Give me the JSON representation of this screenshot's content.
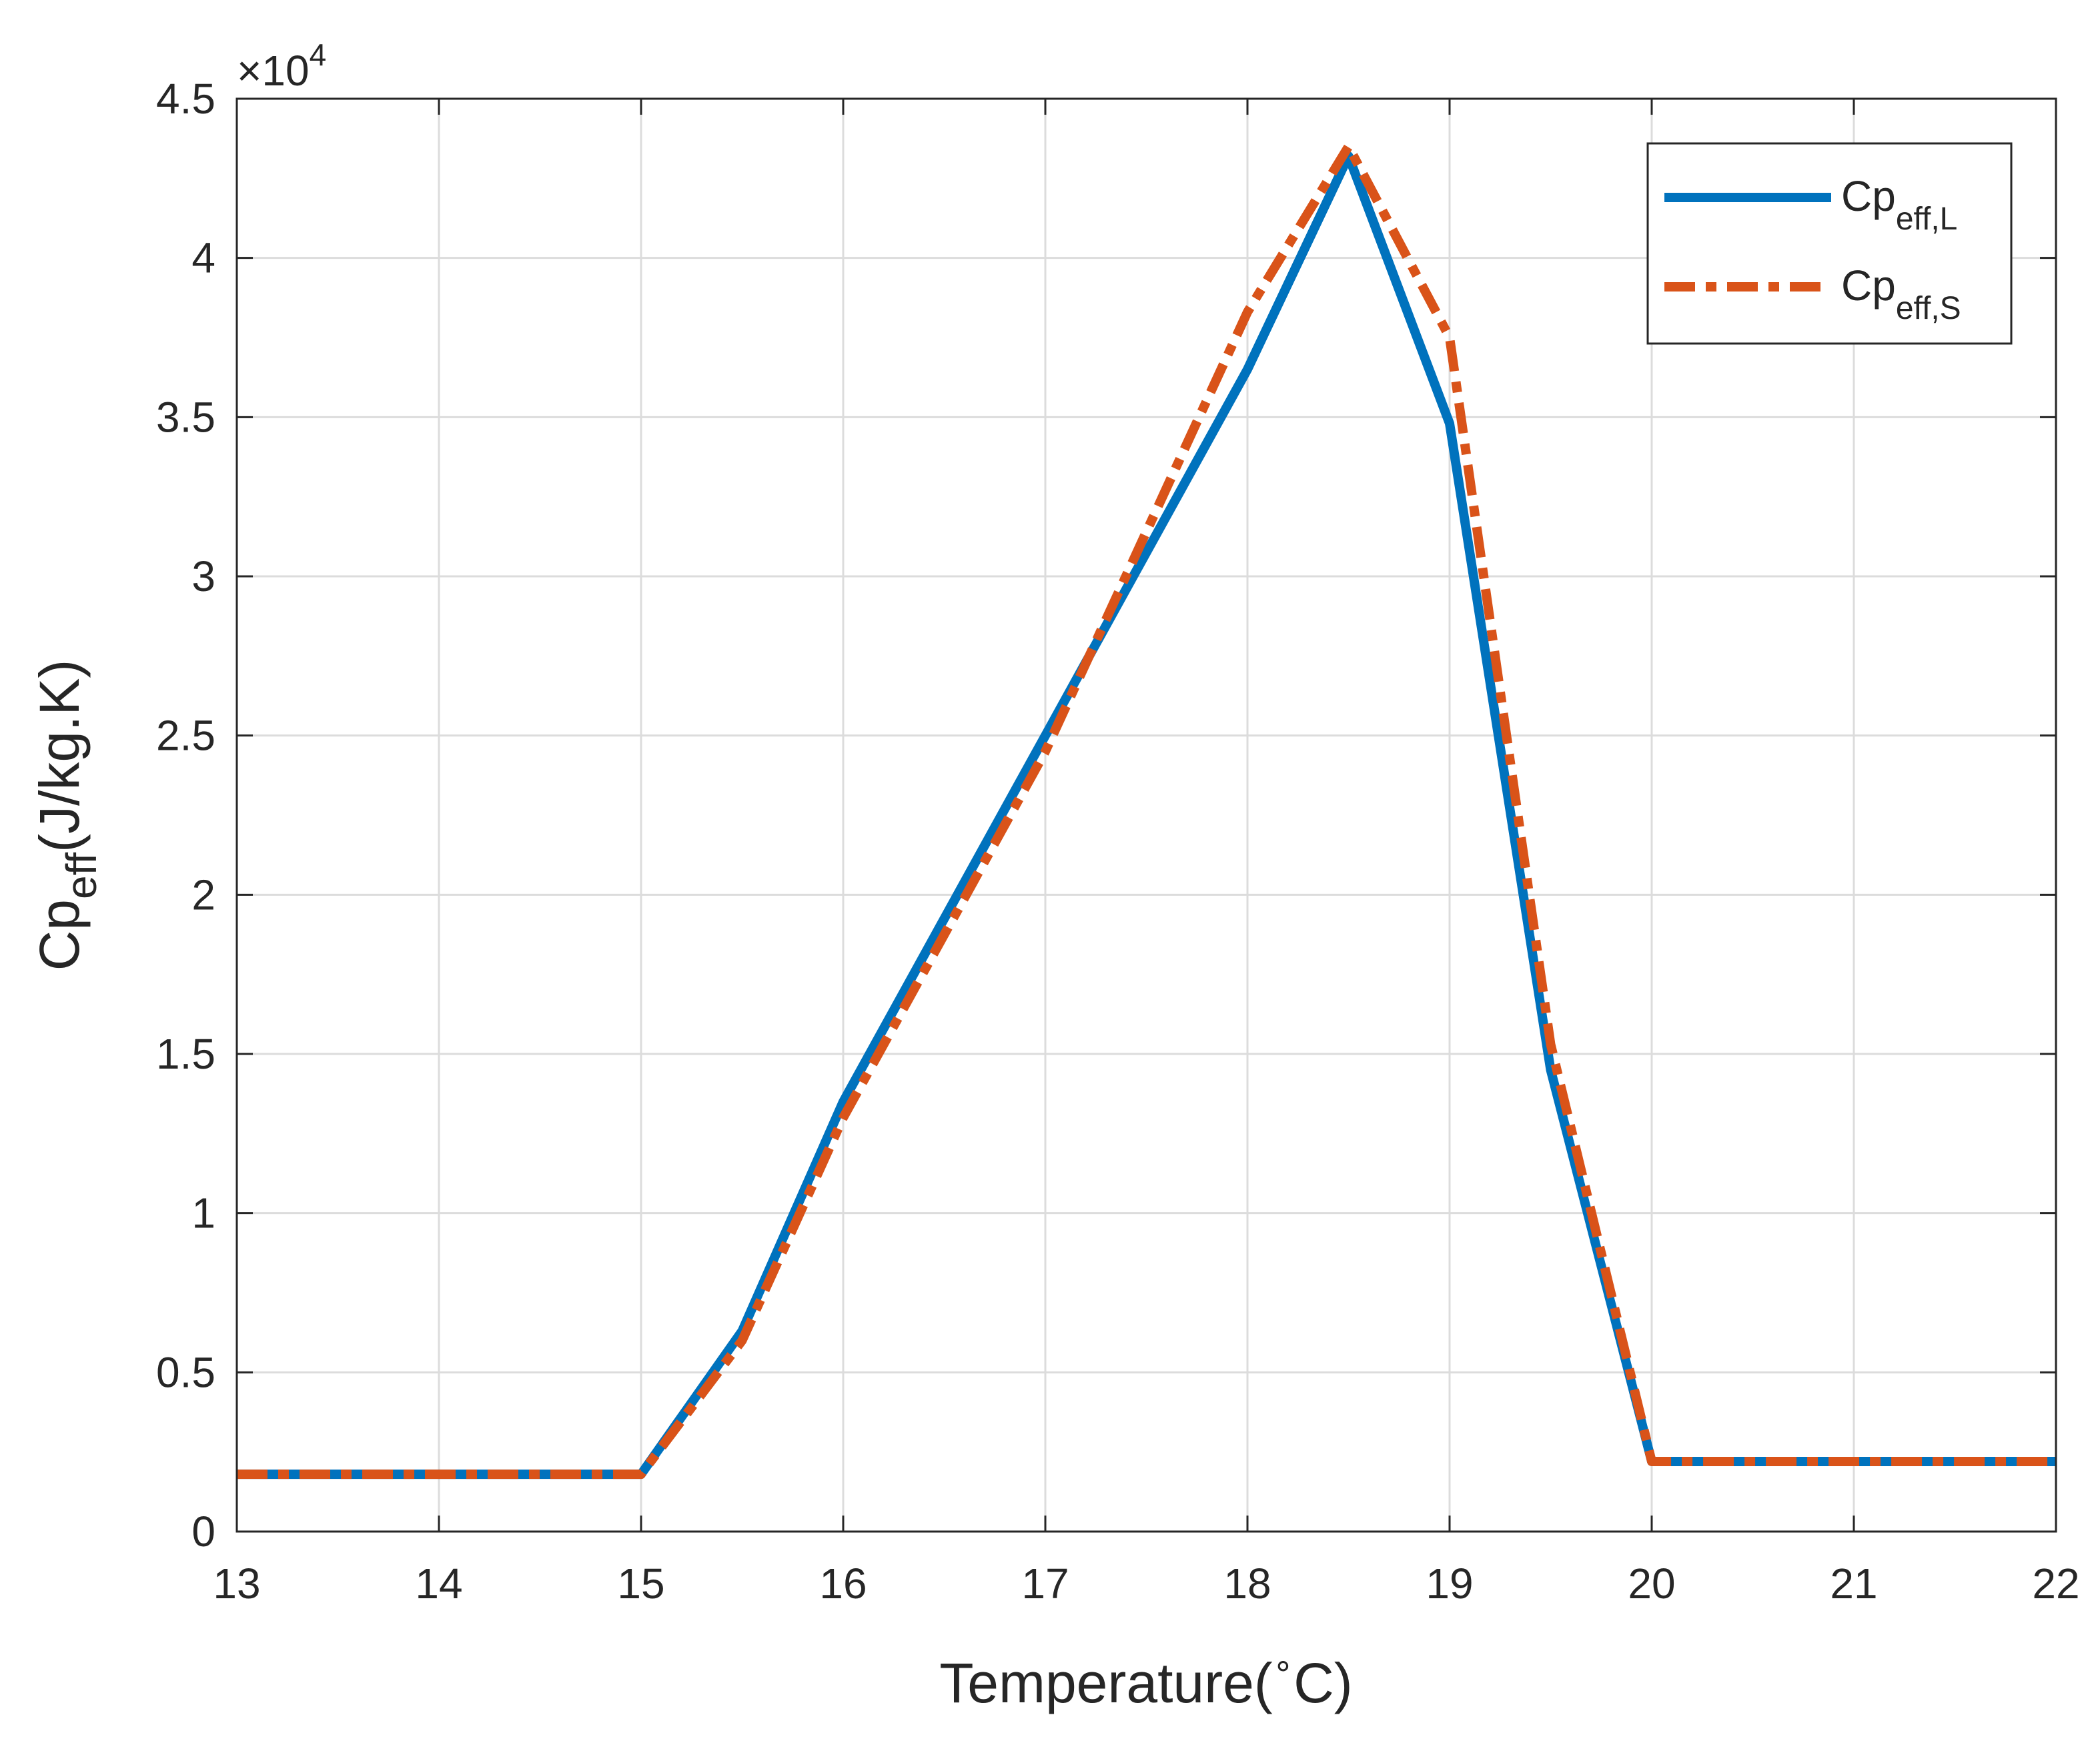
{
  "chart_data": {
    "type": "line",
    "title": "",
    "xlabel": "Temperature(",
    "xlabel_degree": "∘",
    "xlabel_unit": "C)",
    "ylabel_main": "Cp",
    "ylabel_sub": "eff",
    "ylabel_unit": "(J/kg.K)",
    "y_exponent_label": "×10",
    "y_exponent_power": "4",
    "xlim": [
      13,
      22
    ],
    "ylim": [
      0,
      45000
    ],
    "xticks": [
      13,
      14,
      15,
      16,
      17,
      18,
      19,
      20,
      21,
      22
    ],
    "xtick_labels": [
      "13",
      "14",
      "15",
      "16",
      "17",
      "18",
      "19",
      "20",
      "21",
      "22"
    ],
    "yticks": [
      0,
      5000,
      10000,
      15000,
      20000,
      25000,
      30000,
      35000,
      40000,
      45000
    ],
    "ytick_labels": [
      "0",
      "0.5",
      "1",
      "1.5",
      "2",
      "2.5",
      "3",
      "3.5",
      "4",
      "4.5"
    ],
    "grid": true,
    "legend_position": "top-right",
    "series": [
      {
        "name_main": "Cp",
        "name_sub": "eff,L",
        "color": "#0072BD",
        "style": "solid",
        "x": [
          13,
          15,
          15.5,
          16,
          17,
          18,
          18.5,
          19,
          19.5,
          20,
          22
        ],
        "y": [
          1800,
          1800,
          6300,
          13500,
          25000,
          36500,
          43200,
          34800,
          14500,
          2200,
          2200
        ]
      },
      {
        "name_main": "Cp",
        "name_sub": "eff,S",
        "color": "#D95319",
        "style": "dashdot",
        "x": [
          13,
          15,
          15.5,
          16,
          17,
          18,
          18.5,
          19,
          19.5,
          20,
          22
        ],
        "y": [
          1800,
          1800,
          6000,
          13000,
          24500,
          38300,
          43500,
          37500,
          15300,
          2200,
          2200
        ]
      }
    ]
  }
}
